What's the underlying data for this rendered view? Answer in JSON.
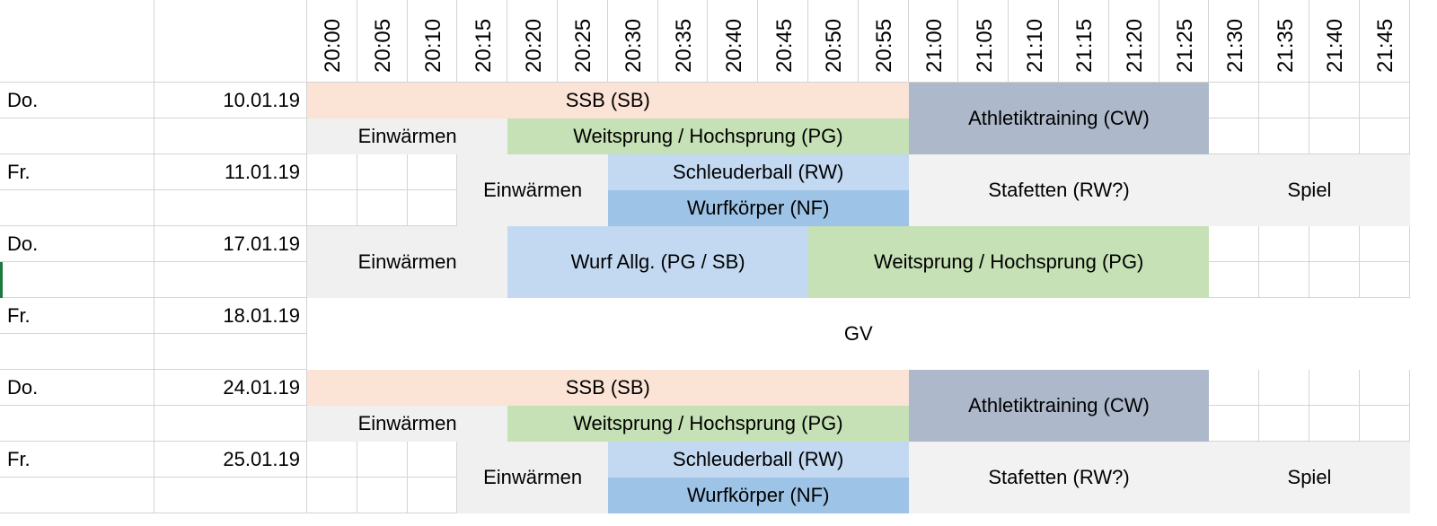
{
  "times": [
    "20:00",
    "20:05",
    "20:10",
    "20:15",
    "20:20",
    "20:25",
    "20:30",
    "20:35",
    "20:40",
    "20:45",
    "20:50",
    "20:55",
    "21:00",
    "21:05",
    "21:10",
    "21:15",
    "21:20",
    "21:25",
    "21:30",
    "21:35",
    "21:40",
    "21:45"
  ],
  "colors": {
    "ssb": "#fbe3d6",
    "warmup": "#f0f0f0",
    "jump": "#c5e1b5",
    "athletic": "#adb9ca",
    "throw_light": "#c2d9f1",
    "throw_dark": "#9dc3e6",
    "relay": "#f2f2f2",
    "grid": "#d4d4d4"
  },
  "rows": [
    {
      "day": "Do.",
      "date": "10.01.19"
    },
    {
      "day": "Fr.",
      "date": "11.01.19"
    },
    {
      "day": "Do.",
      "date": "17.01.19"
    },
    {
      "day": "Fr.",
      "date": "18.01.19"
    },
    {
      "day": "Do.",
      "date": "24.01.19"
    },
    {
      "day": "Fr.",
      "date": "25.01.19"
    }
  ],
  "blocks": [
    {
      "row": 0,
      "sub": 0,
      "span": 1,
      "start": 0,
      "end": 12,
      "label": "SSB (SB)",
      "color": "ssb"
    },
    {
      "row": 0,
      "sub": 1,
      "span": 1,
      "start": 0,
      "end": 4,
      "label": "Einwärmen",
      "color": "warmup"
    },
    {
      "row": 0,
      "sub": 1,
      "span": 1,
      "start": 4,
      "end": 12,
      "label": "Weitsprung / Hochsprung (PG)",
      "color": "jump"
    },
    {
      "row": 0,
      "sub": 0,
      "span": 2,
      "start": 12,
      "end": 18,
      "label": "Athletiktraining (CW)",
      "color": "athletic"
    },
    {
      "row": 1,
      "sub": 0,
      "span": 2,
      "start": 3,
      "end": 6,
      "label": "Einwärmen",
      "color": "warmup"
    },
    {
      "row": 1,
      "sub": 0,
      "span": 1,
      "start": 6,
      "end": 12,
      "label": "Schleuderball (RW)",
      "color": "throw_light"
    },
    {
      "row": 1,
      "sub": 1,
      "span": 1,
      "start": 6,
      "end": 12,
      "label": "Wurfkörper (NF)",
      "color": "throw_dark"
    },
    {
      "row": 1,
      "sub": 0,
      "span": 2,
      "start": 12,
      "end": 18,
      "label": "Stafetten (RW?)",
      "color": "relay"
    },
    {
      "row": 1,
      "sub": 0,
      "span": 2,
      "start": 18,
      "end": 22,
      "label": "Spiel",
      "color": "relay"
    },
    {
      "row": 2,
      "sub": 0,
      "span": 2,
      "start": 0,
      "end": 4,
      "label": "Einwärmen",
      "color": "warmup"
    },
    {
      "row": 2,
      "sub": 0,
      "span": 2,
      "start": 4,
      "end": 10,
      "label": "Wurf Allg. (PG / SB)",
      "color": "throw_light"
    },
    {
      "row": 2,
      "sub": 0,
      "span": 2,
      "start": 10,
      "end": 18,
      "label": "Weitsprung / Hochsprung (PG)",
      "color": "jump"
    },
    {
      "row": 3,
      "sub": 0,
      "span": 2,
      "start": 0,
      "end": 22,
      "label": "GV",
      "color": "white"
    },
    {
      "row": 4,
      "sub": 0,
      "span": 1,
      "start": 0,
      "end": 12,
      "label": "SSB (SB)",
      "color": "ssb"
    },
    {
      "row": 4,
      "sub": 1,
      "span": 1,
      "start": 0,
      "end": 4,
      "label": "Einwärmen",
      "color": "warmup"
    },
    {
      "row": 4,
      "sub": 1,
      "span": 1,
      "start": 4,
      "end": 12,
      "label": "Weitsprung / Hochsprung (PG)",
      "color": "jump"
    },
    {
      "row": 4,
      "sub": 0,
      "span": 2,
      "start": 12,
      "end": 18,
      "label": "Athletiktraining (CW)",
      "color": "athletic"
    },
    {
      "row": 5,
      "sub": 0,
      "span": 2,
      "start": 3,
      "end": 6,
      "label": "Einwärmen",
      "color": "warmup"
    },
    {
      "row": 5,
      "sub": 0,
      "span": 1,
      "start": 6,
      "end": 12,
      "label": "Schleuderball (RW)",
      "color": "throw_light"
    },
    {
      "row": 5,
      "sub": 1,
      "span": 1,
      "start": 6,
      "end": 12,
      "label": "Wurfkörper (NF)",
      "color": "throw_dark"
    },
    {
      "row": 5,
      "sub": 0,
      "span": 2,
      "start": 12,
      "end": 18,
      "label": "Stafetten (RW?)",
      "color": "relay"
    },
    {
      "row": 5,
      "sub": 0,
      "span": 2,
      "start": 18,
      "end": 22,
      "label": "Spiel",
      "color": "relay"
    }
  ]
}
